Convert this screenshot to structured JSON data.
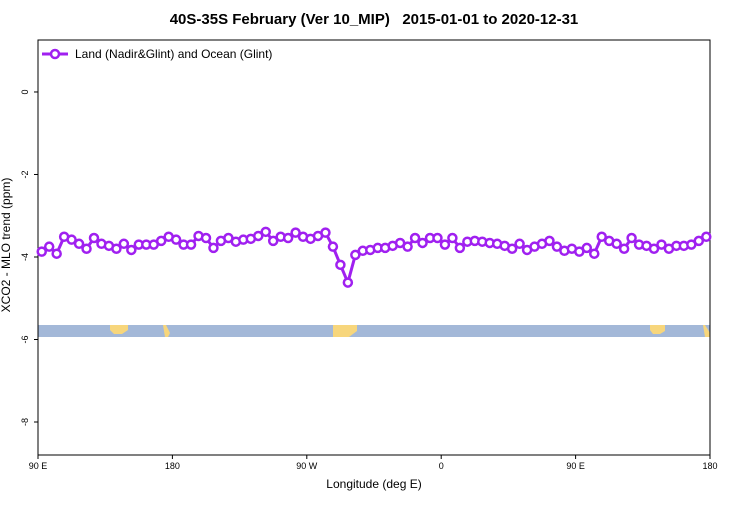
{
  "chart_data": {
    "type": "line",
    "title": "40S-35S February (Ver 10_MIP)   2015-01-01 to 2020-12-31",
    "x_label": "Longitude (deg E)",
    "y_label": "XCO2 - MLO trend (ppm)",
    "xlim": [
      90,
      540
    ],
    "ylim": [
      -8.8,
      1.26
    ],
    "xticks": [
      {
        "value": 90,
        "label": "90 E"
      },
      180,
      {
        "value": 270,
        "label": "90 W"
      },
      {
        "value": 360,
        "label": "0"
      },
      {
        "value": 450,
        "label": "90 E"
      },
      {
        "value": 540,
        "label": "180"
      }
    ],
    "yticks": [
      0,
      -2,
      -4,
      -6,
      -8
    ],
    "legend": "top-left",
    "x": [
      92.5,
      97.5,
      102.5,
      107.5,
      112.5,
      117.5,
      122.5,
      127.5,
      132.5,
      137.5,
      142.5,
      147.5,
      152.5,
      157.5,
      162.5,
      167.5,
      172.5,
      177.5,
      182.5,
      187.5,
      192.5,
      197.5,
      202.5,
      207.5,
      212.5,
      217.5,
      222.5,
      227.5,
      232.5,
      237.5,
      242.5,
      247.5,
      252.5,
      257.5,
      262.5,
      267.5,
      272.5,
      277.5,
      282.5,
      287.5,
      292.5,
      297.5,
      302.5,
      307.5,
      312.5,
      317.5,
      322.5,
      327.5,
      332.5,
      337.5,
      342.5,
      347.5,
      352.5,
      357.5,
      362.5,
      367.5,
      372.5,
      377.5,
      382.5,
      387.5,
      392.5,
      397.5,
      402.5,
      407.5,
      412.5,
      417.5,
      422.5,
      427.5,
      432.5,
      437.5,
      442.5,
      447.5,
      452.5,
      457.5,
      462.5,
      467.5,
      472.5,
      477.5,
      482.5,
      487.5,
      492.5,
      497.5,
      502.5,
      507.5,
      512.5,
      517.5,
      522.5,
      527.5,
      532.5,
      537.5
    ],
    "series": [
      {
        "name": "Land (Nadir&Glint) and Ocean (Glint)",
        "color": "#a020f0",
        "values": [
          -3.87,
          -3.75,
          -3.92,
          -3.51,
          -3.58,
          -3.68,
          -3.8,
          -3.54,
          -3.68,
          -3.73,
          -3.8,
          -3.68,
          -3.83,
          -3.7,
          -3.7,
          -3.7,
          -3.61,
          -3.51,
          -3.58,
          -3.7,
          -3.7,
          -3.49,
          -3.54,
          -3.78,
          -3.61,
          -3.54,
          -3.63,
          -3.58,
          -3.56,
          -3.49,
          -3.39,
          -3.61,
          -3.51,
          -3.54,
          -3.41,
          -3.51,
          -3.56,
          -3.49,
          -3.41,
          -3.75,
          -4.19,
          -4.62,
          -3.95,
          -3.85,
          -3.83,
          -3.78,
          -3.78,
          -3.73,
          -3.66,
          -3.75,
          -3.54,
          -3.66,
          -3.54,
          -3.54,
          -3.7,
          -3.54,
          -3.78,
          -3.63,
          -3.61,
          -3.63,
          -3.66,
          -3.68,
          -3.73,
          -3.8,
          -3.68,
          -3.83,
          -3.75,
          -3.68,
          -3.61,
          -3.75,
          -3.85,
          -3.8,
          -3.87,
          -3.78,
          -3.92,
          -3.51,
          -3.61,
          -3.68,
          -3.8,
          -3.54,
          -3.7,
          -3.73,
          -3.8,
          -3.7,
          -3.8,
          -3.73,
          -3.73,
          -3.7,
          -3.61,
          -3.51
        ]
      }
    ]
  }
}
